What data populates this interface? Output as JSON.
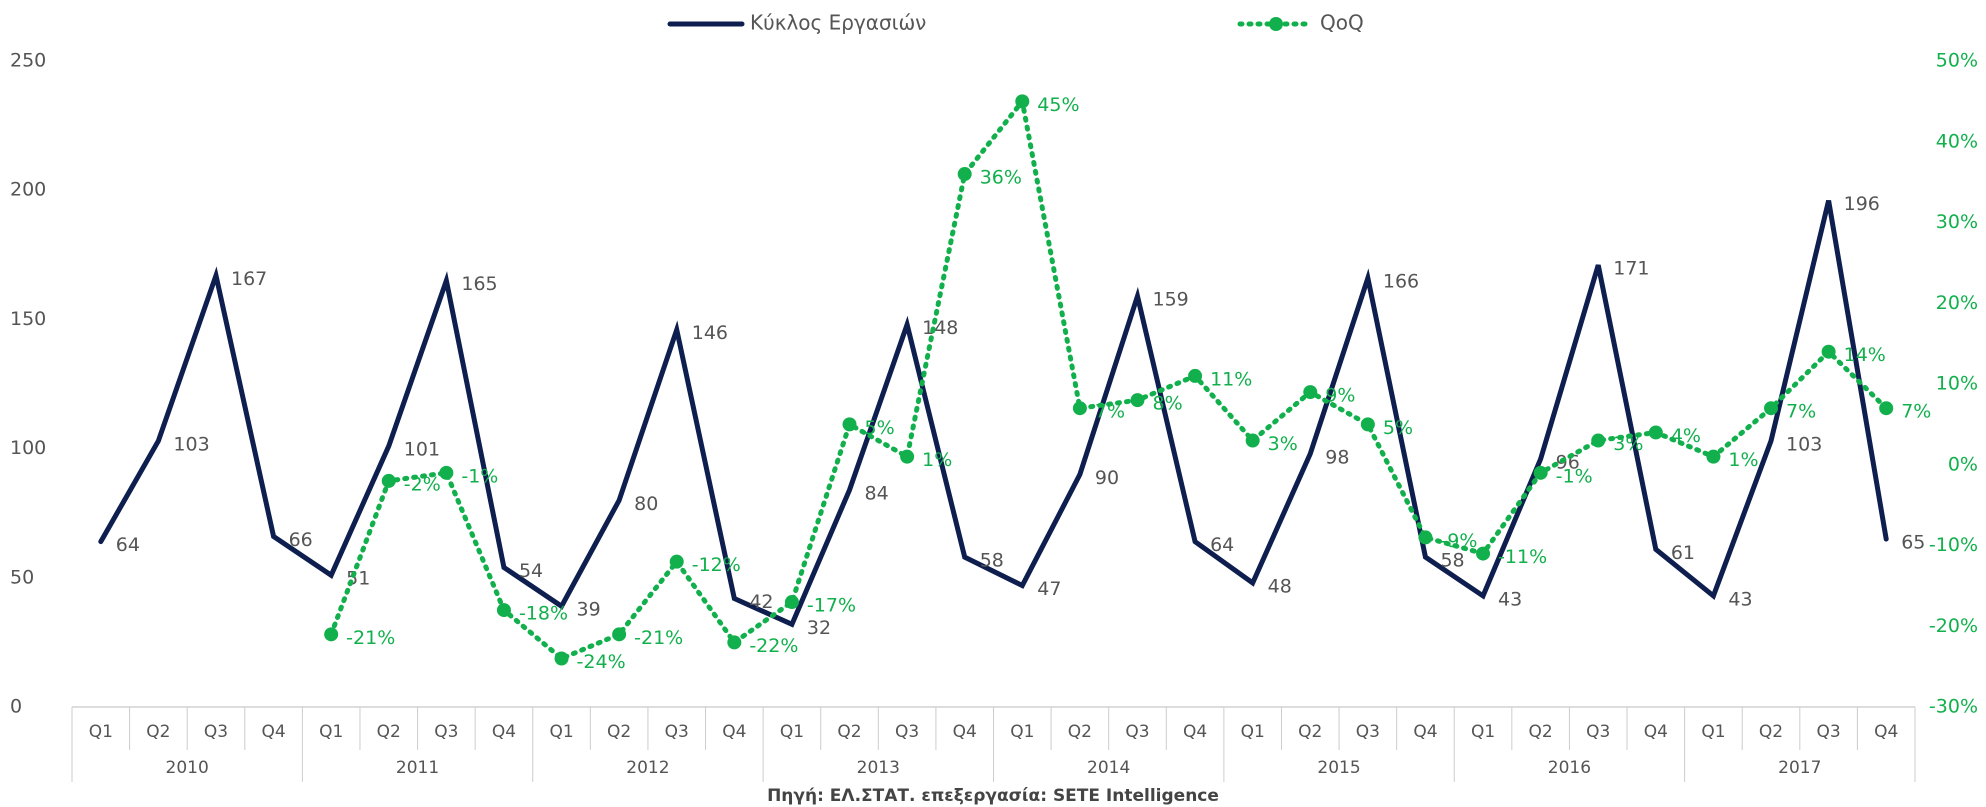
{
  "chart_data": {
    "type": "line",
    "categories": [
      "Q1",
      "Q2",
      "Q3",
      "Q4",
      "Q1",
      "Q2",
      "Q3",
      "Q4",
      "Q1",
      "Q2",
      "Q3",
      "Q4",
      "Q1",
      "Q2",
      "Q3",
      "Q4",
      "Q1",
      "Q2",
      "Q3",
      "Q4",
      "Q1",
      "Q2",
      "Q3",
      "Q4",
      "Q1",
      "Q2",
      "Q3",
      "Q4",
      "Q1",
      "Q2",
      "Q3",
      "Q4"
    ],
    "years": [
      "2010",
      "2011",
      "2012",
      "2013",
      "2014",
      "2015",
      "2016",
      "2017"
    ],
    "series": [
      {
        "name": "Κύκλος Εργασιών",
        "color": "#0e1f4f",
        "values": [
          64,
          103,
          167,
          66,
          51,
          101,
          165,
          54,
          39,
          80,
          146,
          42,
          32,
          84,
          148,
          58,
          47,
          90,
          159,
          64,
          48,
          98,
          166,
          58,
          43,
          96,
          171,
          61,
          43,
          103,
          196,
          65
        ]
      },
      {
        "name": "QoQ",
        "color": "#12b04c",
        "axis": "y2",
        "values": [
          null,
          null,
          null,
          null,
          -21,
          -2,
          -1,
          -18,
          -24,
          -21,
          -12,
          -22,
          -17,
          5,
          1,
          36,
          45,
          7,
          8,
          11,
          3,
          9,
          5,
          -9,
          -11,
          -1,
          3,
          4,
          1,
          7,
          14,
          7
        ],
        "value_labels": [
          null,
          null,
          null,
          null,
          "-21%",
          "-2%",
          "-1%",
          "-18%",
          "-24%",
          "-21%",
          "-12%",
          "-22%",
          "-17%",
          "5%",
          "1%",
          "36%",
          "45%",
          "7%",
          "8%",
          "11%",
          "3%",
          "9%",
          "5%",
          "-9%",
          "-11%",
          "-1%",
          "3%",
          "4%",
          "1%",
          "7%",
          "14%",
          "7%"
        ]
      }
    ],
    "ylim": [
      0,
      250
    ],
    "yticks": [
      0,
      50,
      100,
      150,
      200,
      250
    ],
    "y2lim": [
      -30,
      50
    ],
    "y2ticks": [
      {
        "value": -30,
        "label": "-30%"
      },
      {
        "value": -20,
        "label": "-20%"
      },
      {
        "value": -10,
        "label": "-10%"
      },
      {
        "value": 0,
        "label": "0%"
      },
      {
        "value": 10,
        "label": "10%"
      },
      {
        "value": 20,
        "label": "20%"
      },
      {
        "value": 30,
        "label": "30%"
      },
      {
        "value": 40,
        "label": "40%"
      },
      {
        "value": 50,
        "label": "50%"
      }
    ],
    "source": "Πηγή: ΕΛ.ΣΤΑΤ. επεξεργασία: SETE Intelligence"
  }
}
